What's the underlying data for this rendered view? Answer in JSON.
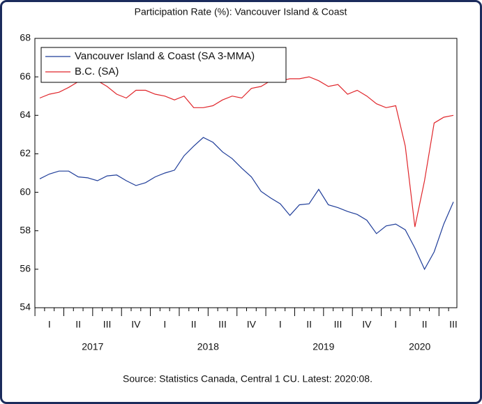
{
  "chart_data": {
    "type": "line",
    "title": "Participation Rate (%): Vancouver Island & Coast",
    "source": "Source: Statistics Canada, Central 1 CU. Latest: 2020:08.",
    "categories": [
      null,
      "I",
      null,
      null,
      "II",
      null,
      null,
      "III",
      null,
      null,
      "IV",
      null,
      null,
      "I",
      null,
      null,
      "II",
      null,
      null,
      "III",
      null,
      null,
      "IV",
      null,
      null,
      "I",
      null,
      null,
      "II",
      null,
      null,
      "III",
      null,
      null,
      "IV",
      null,
      null,
      "I",
      null,
      null,
      "II",
      null,
      null,
      "III"
    ],
    "years": [
      "2017",
      "2018",
      "2019",
      "2020"
    ],
    "series": [
      {
        "name": "Vancouver Island & Coast (SA 3-MMA)",
        "color": "#1f3d99",
        "values": [
          60.7,
          60.95,
          61.1,
          61.1,
          60.8,
          60.75,
          60.6,
          60.85,
          60.9,
          60.6,
          60.35,
          60.5,
          60.8,
          61.0,
          61.15,
          61.9,
          62.4,
          62.85,
          62.6,
          62.1,
          61.75,
          61.25,
          60.8,
          60.05,
          59.7,
          59.4,
          58.8,
          59.35,
          59.4,
          60.15,
          59.35,
          59.2,
          59.0,
          58.85,
          58.55,
          57.85,
          58.25,
          58.35,
          58.05,
          57.1,
          56.0,
          56.9,
          58.35,
          59.5
        ]
      },
      {
        "name": "B.C. (SA)",
        "color": "#e0262b",
        "values": [
          64.9,
          65.1,
          65.2,
          65.45,
          65.75,
          65.9,
          65.8,
          65.5,
          65.1,
          64.9,
          65.3,
          65.3,
          65.1,
          65.0,
          64.8,
          65.0,
          64.4,
          64.4,
          64.5,
          64.8,
          65.0,
          64.9,
          65.4,
          65.5,
          65.8,
          65.8,
          65.9,
          65.9,
          66.0,
          65.8,
          65.5,
          65.6,
          65.1,
          65.3,
          65.0,
          64.6,
          64.4,
          64.5,
          62.4,
          58.2,
          60.6,
          63.6,
          63.9,
          64.0
        ]
      }
    ],
    "ylim": [
      54,
      68
    ],
    "yticks": [
      54,
      56,
      58,
      60,
      62,
      64,
      66,
      68
    ],
    "legend": "upper left",
    "grid": false
  }
}
